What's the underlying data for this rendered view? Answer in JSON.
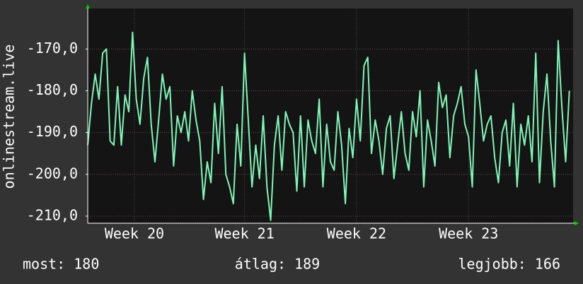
{
  "chart_data": {
    "type": "line",
    "ylabel": "onlinestream.live",
    "stats": [
      "most: 180",
      "átlag: 189",
      "legjobb: 166"
    ],
    "color": "#7ff5b8",
    "grid": true,
    "x": [
      0,
      1,
      2,
      3,
      4,
      5,
      6,
      7,
      8,
      9,
      10,
      11,
      12,
      13,
      14,
      15,
      16,
      17,
      18,
      19,
      20,
      21,
      22,
      23,
      24,
      25,
      26,
      27,
      28,
      29,
      30,
      31,
      32,
      33,
      34,
      35,
      36,
      37,
      38,
      39,
      40,
      41,
      42,
      43,
      44,
      45,
      46,
      47,
      48,
      49,
      50,
      51,
      52,
      53,
      54,
      55,
      56,
      57,
      58,
      59,
      60,
      61,
      62,
      63,
      64,
      65,
      66,
      67,
      68,
      69,
      70,
      71,
      72,
      73,
      74,
      75,
      76,
      77,
      78,
      79,
      80,
      81,
      82,
      83,
      84,
      85,
      86,
      87,
      88,
      89,
      90,
      91,
      92,
      93,
      94,
      95,
      96,
      97,
      98,
      99,
      100,
      101,
      102,
      103,
      104,
      105,
      106,
      107,
      108,
      109,
      110,
      111,
      112,
      113,
      114,
      115,
      116,
      117,
      118,
      119,
      120,
      121,
      122,
      123,
      124,
      125,
      126,
      127,
      128,
      129
    ],
    "values": [
      -193,
      -183,
      -176,
      -182,
      -171,
      -170,
      -192,
      -193,
      -179,
      -193,
      -181,
      -185,
      -166,
      -182,
      -188,
      -177,
      -172,
      -188,
      -197,
      -187,
      -176,
      -182,
      -179,
      -198,
      -186,
      -190,
      -185,
      -192,
      -180,
      -187,
      -192,
      -206,
      -197,
      -202,
      -183,
      -195,
      -179,
      -200,
      -203,
      -207,
      -188,
      -198,
      -171,
      -187,
      -203,
      -193,
      -201,
      -186,
      -203,
      -211,
      -193,
      -186,
      -199,
      -185,
      -188,
      -190,
      -204,
      -186,
      -203,
      -187,
      -192,
      -195,
      -182,
      -203,
      -188,
      -197,
      -199,
      -185,
      -193,
      -207,
      -189,
      -196,
      -182,
      -192,
      -174,
      -172,
      -195,
      -187,
      -192,
      -200,
      -189,
      -186,
      -201,
      -193,
      -185,
      -195,
      -199,
      -185,
      -191,
      -180,
      -203,
      -187,
      -192,
      -198,
      -178,
      -184,
      -181,
      -196,
      -186,
      -183,
      -179,
      -188,
      -191,
      -203,
      -175,
      -183,
      -192,
      -188,
      -186,
      -196,
      -202,
      -190,
      -187,
      -198,
      -183,
      -203,
      -188,
      -193,
      -186,
      -197,
      -171,
      -202,
      -185,
      -176,
      -192,
      -203,
      -168,
      -184,
      -197,
      -180
    ],
    "xlim": [
      0,
      130
    ],
    "xticks": [
      {
        "value": 12.5,
        "label": "Week 20"
      },
      {
        "value": 42,
        "label": "Week 21"
      },
      {
        "value": 72,
        "label": "Week 22"
      },
      {
        "value": 102,
        "label": "Week 23"
      }
    ],
    "ylim": [
      -211.7,
      -160.3
    ],
    "yticks": [
      {
        "value": -170,
        "label": "-170,0"
      },
      {
        "value": -180,
        "label": "-180,0"
      },
      {
        "value": -190,
        "label": "-190,0"
      },
      {
        "value": -200,
        "label": "-200,0"
      },
      {
        "value": -210,
        "label": "-210,0"
      }
    ]
  }
}
